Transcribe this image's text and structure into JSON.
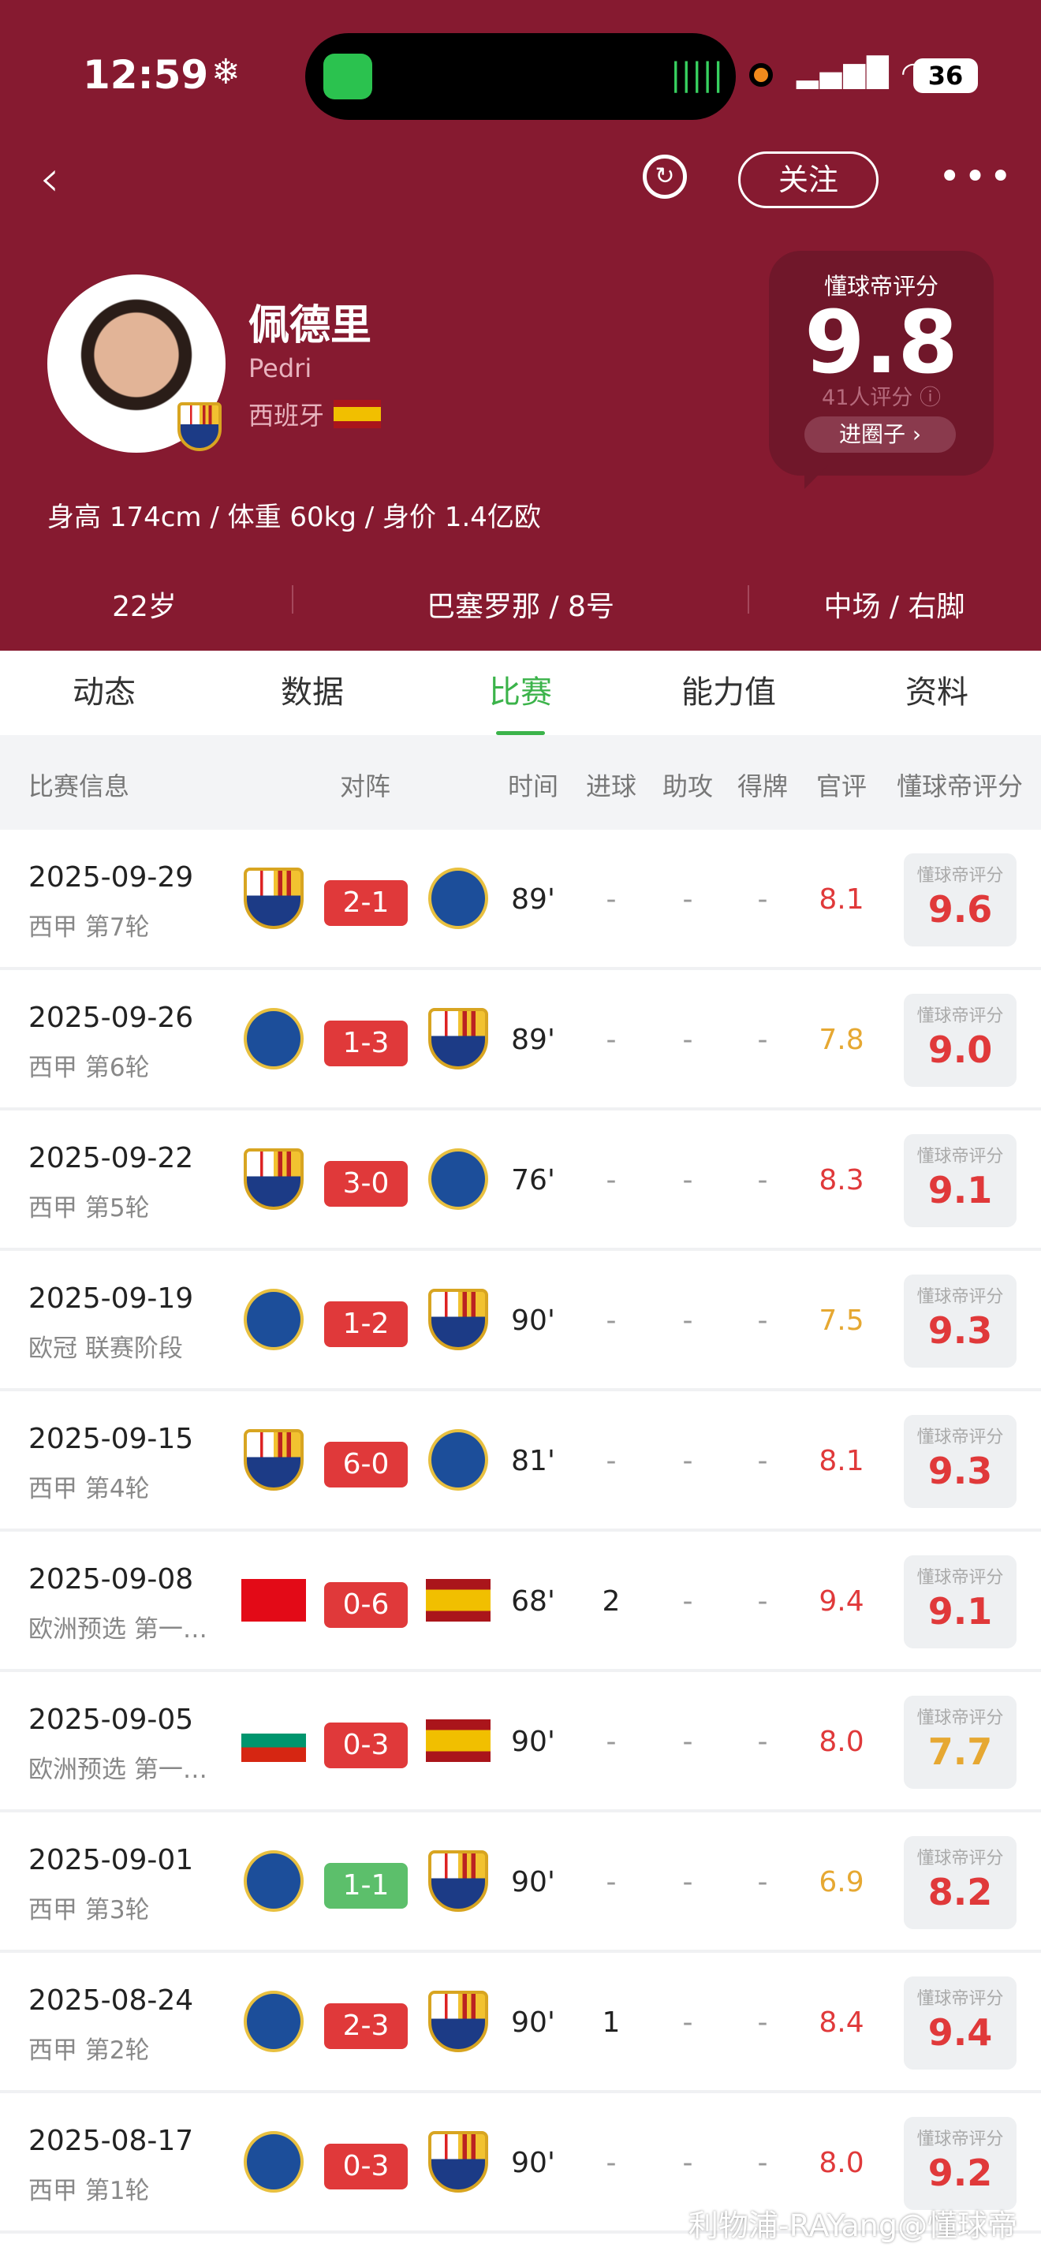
{
  "status_bar": {
    "time": "12:59",
    "snow": "❄",
    "battery": "36"
  },
  "nav": {
    "back": "‹",
    "refresh": "↻",
    "follow": "关注",
    "more": "•••"
  },
  "player": {
    "name_cn": "佩德里",
    "name_en": "Pedri",
    "nation": "西班牙",
    "stats": "身高 174cm / 体重 60kg / 身价 1.4亿欧",
    "age": "22岁",
    "club": "巴塞罗那 / 8号",
    "position": "中场 / 右脚"
  },
  "rating": {
    "label": "懂球帝评分",
    "value": "9.8",
    "count": "41人评分 ⓘ",
    "button": "进圈子 ›"
  },
  "tabs": [
    "动态",
    "数据",
    "比赛",
    "能力值",
    "资料"
  ],
  "active_tab": "比赛",
  "table_headers": [
    "比赛信息",
    "对阵",
    "时间",
    "进球",
    "助攻",
    "得牌",
    "官评",
    "懂球帝评分"
  ],
  "rating_box_label": "懂球帝评分",
  "colors": {
    "header": "#861a30",
    "accent": "#3bb34a",
    "loss_win": "#e0393a",
    "draw": "#5cbf6b",
    "high": "#e0393a",
    "mid": "#e6a832"
  },
  "matches": [
    {
      "date": "2025-09-29",
      "comp": "西甲 第7轮",
      "home": "barcelona",
      "away": "real-sociedad",
      "score": "2-1",
      "result": "win",
      "time": "89'",
      "goals": "-",
      "assists": "-",
      "cards": "-",
      "official": "8.1",
      "off_color": "high",
      "rating": "9.6",
      "r_color": "high"
    },
    {
      "date": "2025-09-26",
      "comp": "西甲 第6轮",
      "home": "real-oviedo",
      "away": "barcelona",
      "score": "1-3",
      "result": "win",
      "time": "89'",
      "goals": "-",
      "assists": "-",
      "cards": "-",
      "official": "7.8",
      "off_color": "mid",
      "rating": "9.0",
      "r_color": "high"
    },
    {
      "date": "2025-09-22",
      "comp": "西甲 第5轮",
      "home": "barcelona",
      "away": "getafe",
      "score": "3-0",
      "result": "win",
      "time": "76'",
      "goals": "-",
      "assists": "-",
      "cards": "-",
      "official": "8.3",
      "off_color": "high",
      "rating": "9.1",
      "r_color": "high"
    },
    {
      "date": "2025-09-19",
      "comp": "欧冠 联赛阶段",
      "home": "newcastle",
      "away": "barcelona",
      "score": "1-2",
      "result": "win",
      "time": "90'",
      "goals": "-",
      "assists": "-",
      "cards": "-",
      "official": "7.5",
      "off_color": "mid",
      "rating": "9.3",
      "r_color": "high"
    },
    {
      "date": "2025-09-15",
      "comp": "西甲 第4轮",
      "home": "barcelona",
      "away": "valencia",
      "score": "6-0",
      "result": "win",
      "time": "81'",
      "goals": "-",
      "assists": "-",
      "cards": "-",
      "official": "8.1",
      "off_color": "high",
      "rating": "9.3",
      "r_color": "high"
    },
    {
      "date": "2025-09-08",
      "comp": "欧洲预选 第一…",
      "home": "turkey",
      "away": "spain",
      "score": "0-6",
      "result": "win",
      "time": "68'",
      "goals": "2",
      "assists": "-",
      "cards": "-",
      "official": "9.4",
      "off_color": "high",
      "rating": "9.1",
      "r_color": "high"
    },
    {
      "date": "2025-09-05",
      "comp": "欧洲预选 第一…",
      "home": "bulgaria",
      "away": "spain",
      "score": "0-3",
      "result": "win",
      "time": "90'",
      "goals": "-",
      "assists": "-",
      "cards": "-",
      "official": "8.0",
      "off_color": "high",
      "rating": "7.7",
      "r_color": "mid"
    },
    {
      "date": "2025-09-01",
      "comp": "西甲 第3轮",
      "home": "rayo-vallecano",
      "away": "barcelona",
      "score": "1-1",
      "result": "draw",
      "time": "90'",
      "goals": "-",
      "assists": "-",
      "cards": "-",
      "official": "6.9",
      "off_color": "mid",
      "rating": "8.2",
      "r_color": "high"
    },
    {
      "date": "2025-08-24",
      "comp": "西甲 第2轮",
      "home": "levante",
      "away": "barcelona",
      "score": "2-3",
      "result": "win",
      "time": "90'",
      "goals": "1",
      "assists": "-",
      "cards": "-",
      "official": "8.4",
      "off_color": "high",
      "rating": "9.4",
      "r_color": "high"
    },
    {
      "date": "2025-08-17",
      "comp": "西甲 第1轮",
      "home": "mallorca",
      "away": "barcelona",
      "score": "0-3",
      "result": "win",
      "time": "90'",
      "goals": "-",
      "assists": "-",
      "cards": "-",
      "official": "8.0",
      "off_color": "high",
      "rating": "9.2",
      "r_color": "high"
    }
  ],
  "watermark": "利物浦-RAYang@懂球帝"
}
